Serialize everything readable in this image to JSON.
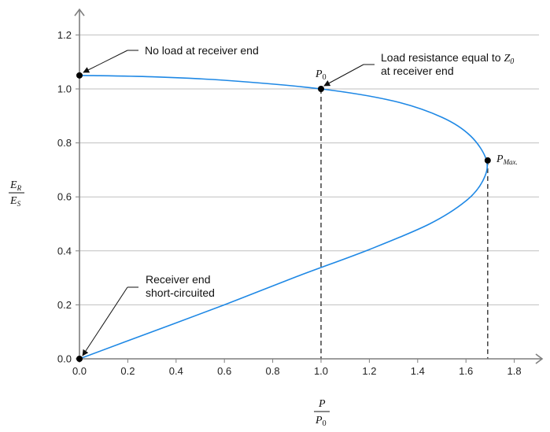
{
  "chart_data": {
    "type": "line",
    "xlabel": {
      "numerator": "P",
      "denominator": "P",
      "denominator_sub": "0"
    },
    "ylabel": {
      "numerator": "E",
      "numerator_sub": "R",
      "denominator": "E",
      "denominator_sub": "S"
    },
    "xlim": [
      0,
      1.9
    ],
    "ylim": [
      0,
      1.25
    ],
    "xticks": [
      "0.0",
      "0.2",
      "0.4",
      "0.6",
      "0.8",
      "1.0",
      "1.2",
      "1.4",
      "1.6",
      "1.8"
    ],
    "yticks": [
      "0.0",
      "0.2",
      "0.4",
      "0.6",
      "0.8",
      "1.0",
      "1.2"
    ],
    "grid": "horizontal",
    "series": [
      {
        "points": [
          [
            0,
            1.05
          ],
          [
            0.3,
            1.045
          ],
          [
            0.6,
            1.032
          ],
          [
            1.0,
            1.0
          ],
          [
            1.3,
            0.955
          ],
          [
            1.5,
            0.895
          ],
          [
            1.62,
            0.825
          ],
          [
            1.685,
            0.735
          ],
          [
            1.67,
            0.66
          ],
          [
            1.6,
            0.585
          ],
          [
            1.45,
            0.5
          ],
          [
            1.2,
            0.405
          ],
          [
            0.9,
            0.305
          ],
          [
            0.6,
            0.2
          ],
          [
            0.3,
            0.1
          ],
          [
            0,
            0
          ]
        ],
        "color": "#1e88e5"
      }
    ],
    "markers": [
      {
        "x": 0,
        "y": 1.05
      },
      {
        "x": 1.0,
        "y": 1.0
      },
      {
        "x": 1.69,
        "y": 0.735
      },
      {
        "x": 0,
        "y": 0
      }
    ],
    "vlines": [
      {
        "x": 1.0,
        "y": 1.0
      },
      {
        "x": 1.69,
        "y": 0.735
      }
    ],
    "point_labels": {
      "p0": {
        "text": "P",
        "sub": "0"
      },
      "pmax": {
        "text": "P",
        "sub": "Max."
      }
    },
    "annotations": {
      "no_load": {
        "text": "No load at receiver end"
      },
      "load_resistance": {
        "line1": "Load resistance equal to ",
        "z_symbol": "Z",
        "z_sub": "0",
        "line2": "at receiver end"
      },
      "short_circuit": {
        "line1": "Receiver end",
        "line2": "short-circuited"
      }
    }
  }
}
